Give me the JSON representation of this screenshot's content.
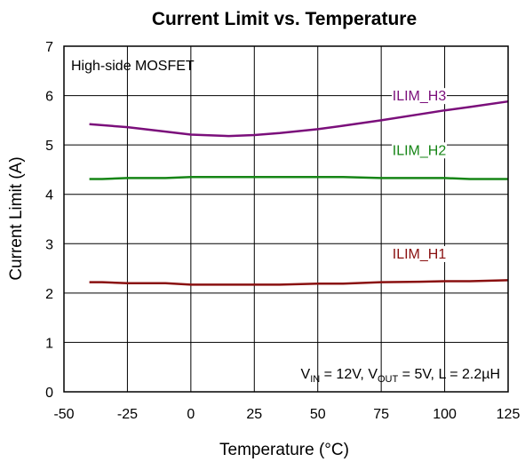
{
  "chart_data": {
    "type": "line",
    "title": "Current Limit  vs. Temperature",
    "xlabel": "Temperature (°C)",
    "ylabel": "Current Limit (A)",
    "xlim": [
      -50,
      125
    ],
    "ylim": [
      0,
      7
    ],
    "xticks": [
      -50,
      -25,
      0,
      25,
      50,
      75,
      100,
      125
    ],
    "yticks": [
      0,
      1,
      2,
      3,
      4,
      5,
      6,
      7
    ],
    "grid": true,
    "annotation_top_left": "High-side MOSFET",
    "conditions": {
      "vin_label": "V",
      "vin_sub": "IN",
      "vin_value": " = 12V, ",
      "vout_label": "V",
      "vout_sub": "OUT",
      "vout_value": " = 5V, L = 2.2µH"
    },
    "series": [
      {
        "name": "ILIM_H3",
        "color": "#7B0F7B",
        "x": [
          -40,
          -25,
          -10,
          0,
          15,
          25,
          35,
          50,
          60,
          75,
          90,
          100,
          110,
          125
        ],
        "y": [
          5.42,
          5.36,
          5.27,
          5.21,
          5.18,
          5.2,
          5.24,
          5.32,
          5.39,
          5.5,
          5.62,
          5.7,
          5.77,
          5.88
        ]
      },
      {
        "name": "ILIM_H2",
        "color": "#168516",
        "x": [
          -40,
          -35,
          -25,
          -10,
          0,
          15,
          25,
          35,
          50,
          60,
          75,
          90,
          100,
          110,
          125
        ],
        "y": [
          4.31,
          4.31,
          4.33,
          4.33,
          4.35,
          4.35,
          4.35,
          4.35,
          4.35,
          4.35,
          4.33,
          4.33,
          4.33,
          4.31,
          4.31
        ]
      },
      {
        "name": "ILIM_H1",
        "color": "#8A1010",
        "x": [
          -40,
          -35,
          -25,
          -10,
          0,
          15,
          25,
          35,
          50,
          60,
          75,
          90,
          100,
          110,
          125
        ],
        "y": [
          2.22,
          2.22,
          2.2,
          2.2,
          2.17,
          2.17,
          2.17,
          2.17,
          2.19,
          2.19,
          2.22,
          2.23,
          2.24,
          2.24,
          2.26
        ]
      }
    ]
  }
}
